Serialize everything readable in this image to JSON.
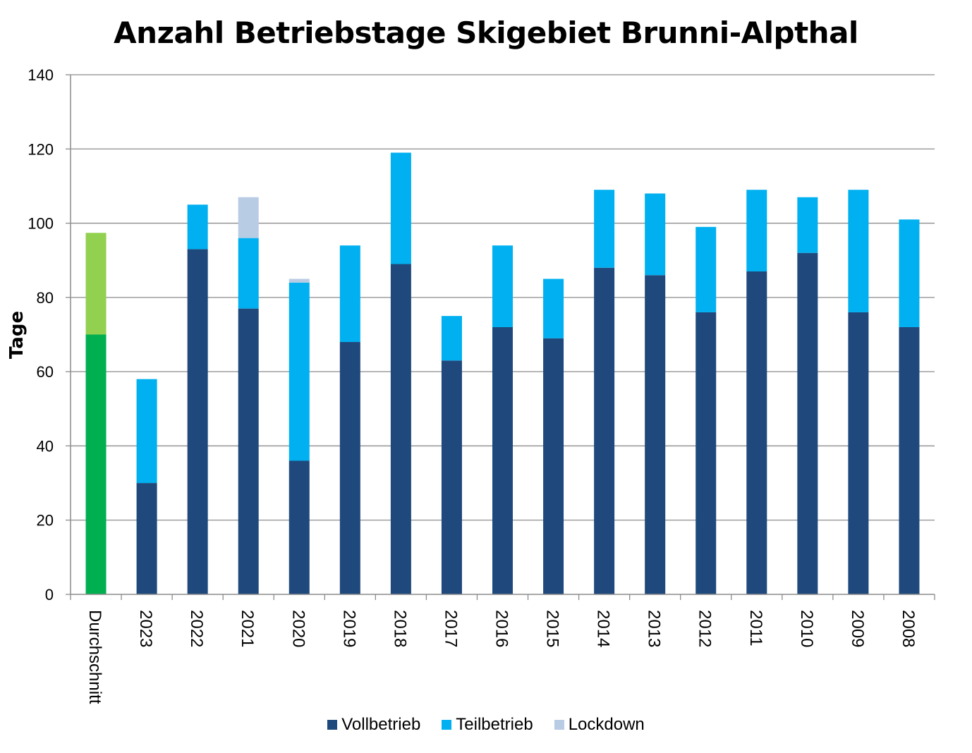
{
  "chart_data": {
    "type": "bar",
    "stacked": true,
    "title": "Anzahl Betriebstage Skigebiet Brunni-Alpthal",
    "ylabel": "Tage",
    "xlabel": "",
    "ylim": [
      0,
      140
    ],
    "yticks": [
      0,
      20,
      40,
      60,
      80,
      100,
      120,
      140
    ],
    "grid": true,
    "legend_position": "bottom",
    "categories": [
      "Durchschnitt",
      "2023",
      "2022",
      "2021",
      "2020",
      "2019",
      "2018",
      "2017",
      "2016",
      "2015",
      "2014",
      "2013",
      "2012",
      "2011",
      "2010",
      "2009",
      "2008"
    ],
    "series": [
      {
        "name": "Vollbetrieb",
        "color": "#1f497d",
        "values": [
          70,
          30,
          93,
          77,
          36,
          68,
          89,
          63,
          72,
          69,
          88,
          86,
          76,
          87,
          92,
          76,
          72
        ]
      },
      {
        "name": "Teilbetrieb",
        "color": "#00b0f0",
        "values": [
          27.4,
          28,
          12,
          19,
          48,
          26,
          30,
          12,
          22,
          16,
          21,
          22,
          23,
          22,
          15,
          33,
          29
        ]
      },
      {
        "name": "Lockdown",
        "color": "#b8cce4",
        "values": [
          0,
          0,
          0,
          11,
          1,
          0,
          0,
          0,
          0,
          0,
          0,
          0,
          0,
          0,
          0,
          0,
          0
        ]
      }
    ],
    "highlight": {
      "category": "Durchschnitt",
      "colors": [
        "#00b050",
        "#92d050",
        "#92d050"
      ]
    }
  }
}
